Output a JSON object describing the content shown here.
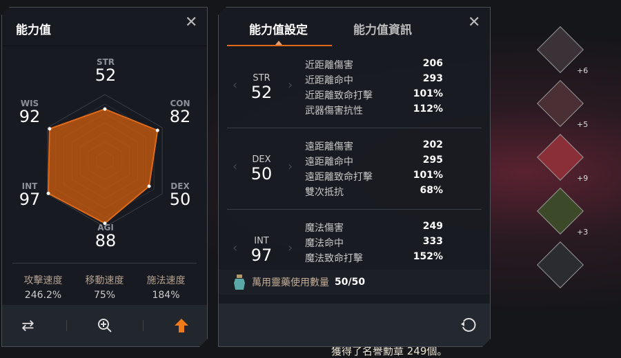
{
  "background": {
    "message": "獲得了名譽勳章 249個。"
  },
  "left_panel": {
    "title": "能力值",
    "stats": [
      {
        "name": "STR",
        "value": 52
      },
      {
        "name": "CON",
        "value": 82
      },
      {
        "name": "DEX",
        "value": 50
      },
      {
        "name": "AGI",
        "value": 88
      },
      {
        "name": "INT",
        "value": 97
      },
      {
        "name": "WIS",
        "value": 92
      }
    ],
    "speeds": [
      {
        "label": "攻擊速度",
        "value": "246.2%"
      },
      {
        "label": "移動速度",
        "value": "75%"
      },
      {
        "label": "施法速度",
        "value": "184%"
      }
    ],
    "toolbar": [
      "swap-icon",
      "zoom-in-icon",
      "level-up-arrow-icon"
    ],
    "accent": "#e06a1a"
  },
  "right_panel": {
    "tabs": [
      {
        "label": "能力值設定",
        "active": true
      },
      {
        "label": "能力值資訊",
        "active": false
      }
    ],
    "sections": [
      {
        "stat": "STR",
        "value": 52,
        "rows": [
          {
            "k": "近距離傷害",
            "v": "206"
          },
          {
            "k": "近距離命中",
            "v": "293"
          },
          {
            "k": "近距離致命打擊",
            "v": "101%"
          },
          {
            "k": "武器傷害抗性",
            "v": "112%"
          }
        ]
      },
      {
        "stat": "DEX",
        "value": 50,
        "rows": [
          {
            "k": "遠距離傷害",
            "v": "202"
          },
          {
            "k": "遠距離命中",
            "v": "295"
          },
          {
            "k": "遠距離致命打擊",
            "v": "101%"
          },
          {
            "k": "雙次抵抗",
            "v": "68%"
          }
        ]
      },
      {
        "stat": "INT",
        "value": 97,
        "rows": [
          {
            "k": "魔法傷害",
            "v": "249"
          },
          {
            "k": "魔法命中",
            "v": "333"
          },
          {
            "k": "魔法致命打擊",
            "v": "152%"
          }
        ]
      }
    ],
    "potion": {
      "label": "萬用靈藥使用數量",
      "value": "50/50"
    }
  },
  "equipment": [
    {
      "enhance": "+6"
    },
    {
      "enhance": "+5"
    },
    {
      "enhance": "+9"
    },
    {
      "enhance": "+3"
    },
    {
      "enhance": ""
    }
  ]
}
